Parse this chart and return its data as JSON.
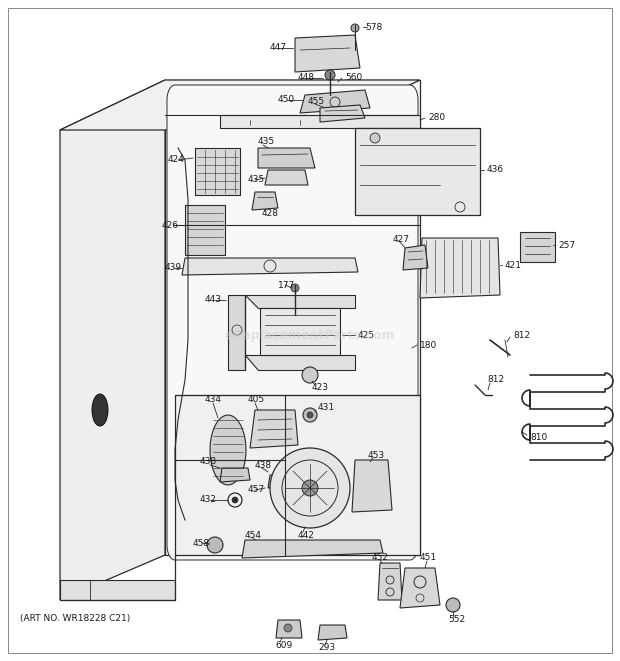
{
  "bg_color": "#ffffff",
  "line_color": "#2a2a2a",
  "art_no": "(ART NO. WR18228 C21)",
  "watermark": "eReplacementParts.com",
  "figw": 6.2,
  "figh": 6.61,
  "dpi": 100
}
